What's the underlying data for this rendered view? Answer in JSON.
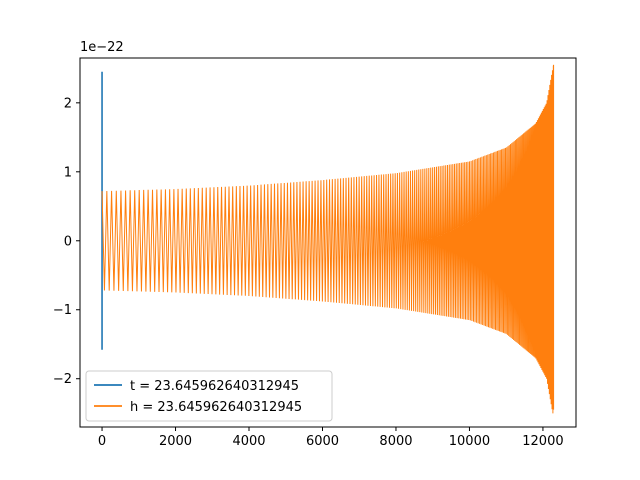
{
  "chart_data": {
    "type": "line",
    "title": "",
    "xlabel": "",
    "ylabel": "",
    "y_offset_label": "1e−22",
    "xlim": [
      -600,
      12900
    ],
    "ylim": [
      -2.7,
      2.65
    ],
    "x_ticks": [
      0,
      2000,
      4000,
      6000,
      8000,
      10000,
      12000
    ],
    "x_tick_labels": [
      "0",
      "2000",
      "4000",
      "6000",
      "8000",
      "10000",
      "12000"
    ],
    "y_ticks": [
      -2,
      -1,
      0,
      1,
      2
    ],
    "y_tick_labels": [
      "−2",
      "−1",
      "0",
      "1",
      "2"
    ],
    "grid": false,
    "legend_position": "lower-left",
    "series": [
      {
        "name": "t = 23.645962640312945",
        "color": "#1f77b4",
        "description_points": {
          "x": [
            0,
            0,
            0
          ],
          "y": [
            2.45,
            -1.58,
            0.0
          ]
        }
      },
      {
        "name": "h = 23.645962640312945",
        "color": "#ff7f0e",
        "envelope": {
          "x": [
            0,
            2000,
            4000,
            6000,
            8000,
            10000,
            11000,
            11800,
            12100,
            12250,
            12290
          ],
          "amplitude": [
            0.72,
            0.75,
            0.8,
            0.88,
            0.98,
            1.15,
            1.35,
            1.7,
            2.0,
            2.45,
            2.55
          ]
        },
        "start_x": 0,
        "end_x": 12290
      }
    ]
  }
}
